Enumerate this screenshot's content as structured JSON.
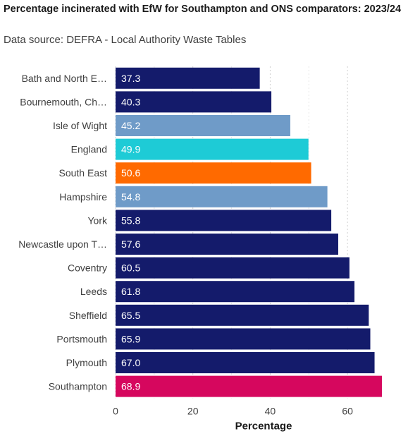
{
  "title": "Percentage incinerated with EfW for Southampton and ONS comparators: 2023/24",
  "subtitle": "Data source: DEFRA - Local Authority Waste Tables",
  "colors": {
    "default": "#141b6b",
    "isle_of_wight": "#6f9bc8",
    "hampshire": "#6f9bc8",
    "england": "#1ecbd6",
    "south_east": "#ff6a00",
    "southampton": "#d6075e"
  },
  "chart_data": {
    "type": "bar",
    "orientation": "horizontal",
    "xlabel": "Percentage",
    "xlim": [
      0,
      70
    ],
    "xticks": [
      0,
      20,
      40,
      60
    ],
    "grid": "vertical dotted",
    "categories": [
      "Bath and North E…",
      "Bournemouth, Ch…",
      "Isle of Wight",
      "England",
      "South East",
      "Hampshire",
      "York",
      "Newcastle upon T…",
      "Coventry",
      "Leeds",
      "Sheffield",
      "Portsmouth",
      "Plymouth",
      "Southampton"
    ],
    "values": [
      37.3,
      40.3,
      45.2,
      49.9,
      50.6,
      54.8,
      55.8,
      57.6,
      60.5,
      61.8,
      65.5,
      65.9,
      67.0,
      68.9
    ],
    "value_labels": [
      "37.3",
      "40.3",
      "45.2",
      "49.9",
      "50.6",
      "54.8",
      "55.8",
      "57.6",
      "60.5",
      "61.8",
      "65.5",
      "65.9",
      "67.0",
      "68.9"
    ],
    "bar_colors": [
      "#141b6b",
      "#141b6b",
      "#6f9bc8",
      "#1ecbd6",
      "#ff6a00",
      "#6f9bc8",
      "#141b6b",
      "#141b6b",
      "#141b6b",
      "#141b6b",
      "#141b6b",
      "#141b6b",
      "#141b6b",
      "#d6075e"
    ]
  }
}
